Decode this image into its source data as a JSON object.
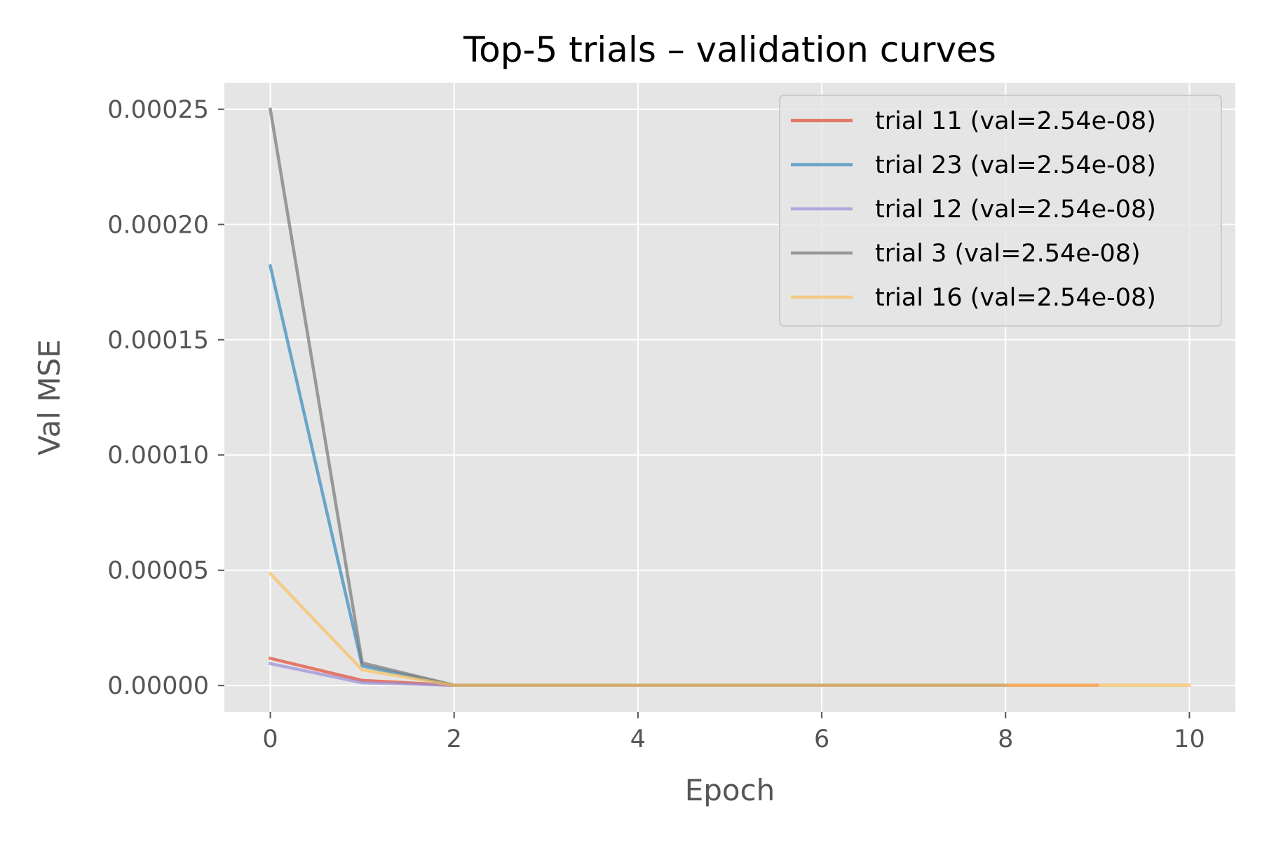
{
  "chart_data": {
    "type": "line",
    "title": "Top-5 trials – validation curves",
    "xlabel": "Epoch",
    "ylabel": "Val MSE",
    "xlim": [
      -0.5,
      10.5
    ],
    "ylim": [
      -1.15e-05,
      0.0002615
    ],
    "x_ticks": [
      0,
      2,
      4,
      6,
      8,
      10
    ],
    "x_tick_labels": [
      "0",
      "2",
      "4",
      "6",
      "8",
      "10"
    ],
    "y_ticks": [
      0,
      5e-05,
      0.0001,
      0.00015,
      0.0002,
      0.00025
    ],
    "y_tick_labels": [
      "0.00000",
      "0.00005",
      "0.00010",
      "0.00015",
      "0.00020",
      "0.00025"
    ],
    "grid": true,
    "legend_position": "top-right",
    "series": [
      {
        "name": "trial 11 (val=2.54e-08)",
        "color": "#E24A33",
        "x": [
          0,
          1,
          2,
          3,
          4,
          5,
          6,
          7,
          8,
          9
        ],
        "y": [
          1.18e-05,
          2.2e-06,
          1e-07,
          1e-07,
          1e-07,
          1e-07,
          1e-07,
          1e-07,
          1e-07,
          1e-07
        ]
      },
      {
        "name": "trial 23 (val=2.54e-08)",
        "color": "#348ABD",
        "x": [
          0,
          1,
          2,
          3,
          4,
          5,
          6,
          7,
          8
        ],
        "y": [
          0.000182,
          8.5e-06,
          1e-07,
          1e-07,
          1e-07,
          1e-07,
          1e-07,
          1e-07,
          1e-07
        ]
      },
      {
        "name": "trial 12 (val=2.54e-08)",
        "color": "#988ED5",
        "x": [
          0,
          1,
          2,
          3,
          4,
          5,
          6,
          7,
          8
        ],
        "y": [
          9.5e-06,
          1.2e-06,
          1e-07,
          1e-07,
          1e-07,
          1e-07,
          1e-07,
          1e-07,
          1e-07
        ]
      },
      {
        "name": "trial 3 (val=2.54e-08)",
        "color": "#777777",
        "x": [
          0,
          1,
          2,
          3,
          4,
          5,
          6,
          7,
          8
        ],
        "y": [
          0.00025,
          9.8e-06,
          1e-07,
          1e-07,
          1e-07,
          1e-07,
          1e-07,
          1e-07,
          1e-07
        ]
      },
      {
        "name": "trial 16 (val=2.54e-08)",
        "color": "#FBC15E",
        "x": [
          0,
          1,
          2,
          3,
          4,
          5,
          6,
          7,
          8,
          9,
          10
        ],
        "y": [
          4.85e-05,
          6.8e-06,
          1e-07,
          1e-07,
          1e-07,
          1e-07,
          1e-07,
          1e-07,
          1e-07,
          1e-07,
          1e-07
        ]
      }
    ]
  }
}
